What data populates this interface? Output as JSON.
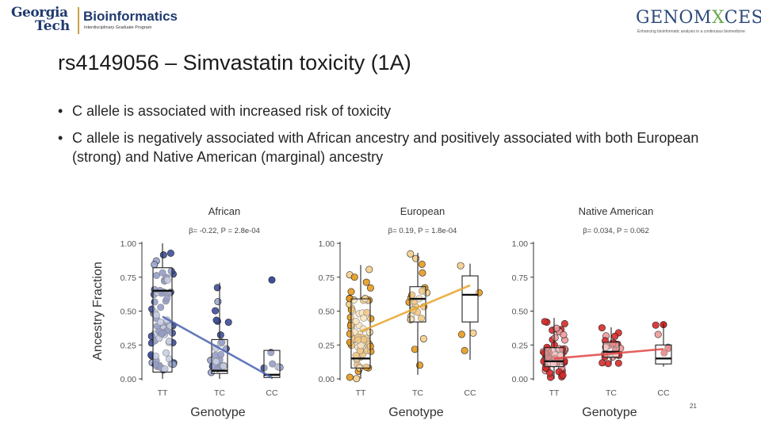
{
  "header": {
    "gt_logo": {
      "line1": "Georgia",
      "line2": "Tech",
      "program": "Bioinformatics",
      "subtitle": "Interdisciplinary Graduate Program"
    },
    "genomaces_logo": {
      "word_pre": "GENOM",
      "word_x": "X",
      "word_post": "CES",
      "tagline": "Enhancing bioinformatic analysis in a continuous biomedicine"
    }
  },
  "slide": {
    "title": "rs4149056  – Simvastatin toxicity (1A)",
    "bullets": [
      "C allele is associated with increased risk of toxicity",
      "C allele is negatively associated with African ancestry and positively associated with both European (strong) and Native American (marginal) ancestry"
    ],
    "bullet_symbol": "•",
    "page_number": "21"
  },
  "chart_data": {
    "type": "box",
    "ylabel": "Ancestry Fraction",
    "xlabel": "Genotype",
    "ylim": [
      0,
      1
    ],
    "yticks": [
      "0.00",
      "0.25",
      "0.50",
      "0.75",
      "1.00"
    ],
    "categories": [
      "TT",
      "TC",
      "CC"
    ],
    "panels": [
      {
        "title": "African",
        "stat_beta": "-0.22",
        "stat_p": "2.8e-04",
        "color": "#3e4f9a",
        "fill_light": "#9aa6cf",
        "line_color": "#4a63b0",
        "boxes": [
          {
            "genotype": "TT",
            "q1": 0.05,
            "median": 0.65,
            "q3": 0.82,
            "min": 0.0,
            "max": 1.0
          },
          {
            "genotype": "TC",
            "q1": 0.04,
            "median": 0.06,
            "q3": 0.29,
            "min": 0.0,
            "max": 0.71
          },
          {
            "genotype": "CC",
            "q1": 0.01,
            "median": 0.03,
            "q3": 0.21,
            "min": 0.0,
            "max": 0.21
          }
        ],
        "fit_line": [
          0.46,
          0.01
        ],
        "outliers": [
          {
            "genotype": "CC",
            "value": 0.73
          }
        ]
      },
      {
        "title": "European",
        "stat_beta": "0.19",
        "stat_p": "1.8e-04",
        "color": "#e69a1e",
        "fill_light": "#f5cf8c",
        "line_color": "#e8a52c",
        "boxes": [
          {
            "genotype": "TT",
            "q1": 0.08,
            "median": 0.15,
            "q3": 0.59,
            "min": 0.0,
            "max": 0.84
          },
          {
            "genotype": "TC",
            "q1": 0.42,
            "median": 0.59,
            "q3": 0.68,
            "min": 0.03,
            "max": 0.93
          },
          {
            "genotype": "CC",
            "q1": 0.42,
            "median": 0.62,
            "q3": 0.76,
            "min": 0.14,
            "max": 0.85
          }
        ],
        "fit_line": [
          0.35,
          0.69
        ],
        "outliers": []
      },
      {
        "title": "Native American",
        "stat_beta": "0.034",
        "stat_p": "0.062",
        "color": "#d62a2a",
        "fill_light": "#f09a9a",
        "line_color": "#e04444",
        "boxes": [
          {
            "genotype": "TT",
            "q1": 0.09,
            "median": 0.13,
            "q3": 0.23,
            "min": 0.0,
            "max": 0.45
          },
          {
            "genotype": "TC",
            "q1": 0.16,
            "median": 0.2,
            "q3": 0.27,
            "min": 0.11,
            "max": 0.38
          },
          {
            "genotype": "CC",
            "q1": 0.11,
            "median": 0.15,
            "q3": 0.25,
            "min": 0.09,
            "max": 0.41
          }
        ],
        "fit_line": [
          0.15,
          0.22
        ],
        "outliers": [
          {
            "genotype": "CC",
            "value": 0.4
          }
        ]
      }
    ]
  }
}
